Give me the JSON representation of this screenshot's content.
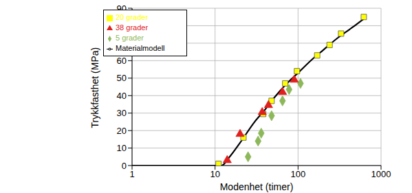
{
  "chart_data": {
    "type": "scatter",
    "x_label": "Modenhet (timer)",
    "y_label": "Trykkfasthet (MPa)",
    "log": "x",
    "grid": true,
    "legend": "upper left",
    "xlim": [
      1,
      1000
    ],
    "xticks": [
      1,
      10,
      100,
      1000
    ],
    "ylim": [
      0,
      90
    ],
    "yticks": [
      0,
      10,
      20,
      30,
      40,
      50,
      60,
      70,
      80,
      90
    ],
    "series": [
      {
        "name": "5 grader",
        "type": "scatter",
        "marker": "diamond",
        "color": "#8db85a",
        "x": [
          25,
          33,
          36,
          48,
          65,
          78,
          107
        ],
        "values": [
          5,
          14,
          18.5,
          28.5,
          37,
          43.5,
          47
        ]
      },
      {
        "name": "20 grader",
        "type": "scatter",
        "marker": "square",
        "color": "#ffff00",
        "x": [
          11,
          22,
          38,
          48,
          70,
          97,
          170,
          240,
          330,
          620
        ],
        "values": [
          1,
          16,
          29.5,
          37,
          47,
          54,
          63,
          69,
          75.5,
          85
        ]
      },
      {
        "name": "38 grader",
        "type": "scatter",
        "marker": "triangle",
        "color": "#e0201e",
        "x": [
          14,
          20,
          37,
          44,
          65,
          90
        ],
        "values": [
          3,
          18,
          30.5,
          34.5,
          42,
          49
        ]
      },
      {
        "name": "Materialmodell",
        "type": "line",
        "line_style": "solid",
        "color": "#000000",
        "x": [
          1,
          12,
          15,
          20,
          30,
          40,
          50,
          70,
          100,
          150,
          200,
          300,
          450,
          620
        ],
        "values": [
          0,
          0,
          5,
          13,
          25,
          32,
          38,
          46,
          53,
          61,
          66,
          73,
          79,
          84
        ]
      }
    ]
  }
}
